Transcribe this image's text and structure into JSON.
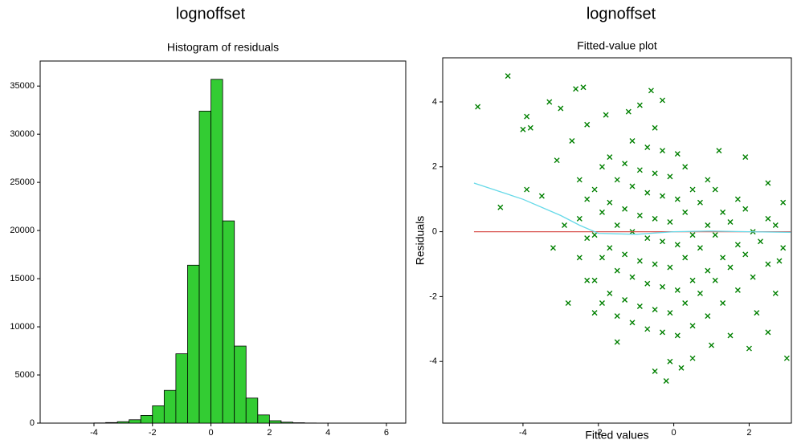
{
  "chart_data": [
    {
      "type": "histogram",
      "title": "lognoffset",
      "subtitle": "Histogram of residuals",
      "color": "#33cc33",
      "bins": [
        -4.0,
        -3.6,
        -3.2,
        -2.8,
        -2.4,
        -2.0,
        -1.6,
        -1.2,
        -0.8,
        -0.4,
        0,
        0.4,
        0.8,
        1.2,
        1.6,
        2.0,
        2.4,
        2.8,
        3.2,
        3.6,
        4.0
      ],
      "values": [
        20,
        60,
        150,
        350,
        800,
        1800,
        3400,
        7200,
        16400,
        32400,
        35700,
        21000,
        8000,
        2600,
        850,
        250,
        100,
        40,
        15,
        5
      ],
      "xlim": [
        -5.84,
        6.66
      ],
      "ylim": [
        0,
        37600
      ],
      "xticks": [
        -4,
        -2,
        0,
        2,
        4,
        6
      ],
      "yticks": [
        0,
        5000,
        10000,
        15000,
        20000,
        25000,
        30000,
        35000
      ]
    },
    {
      "type": "scatter",
      "title": "lognoffset",
      "subtitle": "Fitted-value plot",
      "x_label": "Fitted values",
      "y_label": "Residuals",
      "xlim": [
        -6.13,
        3.12
      ],
      "ylim": [
        -5.9,
        5.36
      ],
      "xticks": [
        -4,
        -2,
        0,
        2
      ],
      "yticks": [
        -4,
        -2,
        0,
        2,
        4
      ],
      "series": [
        {
          "mode": "markers",
          "color": "#008000",
          "x": [
            -5.2,
            -4.4,
            -4.6,
            -3.8,
            -4.0,
            -3.9,
            -3.3,
            -3.0,
            -2.6,
            -2.4,
            -0.6,
            -0.3,
            1.2,
            1.9,
            2.5,
            2.9,
            2.8,
            3.0,
            2.5,
            2.0,
            -0.2,
            -0.1,
            0.2,
            -0.5,
            -1.5,
            -2.1,
            -2.8,
            -3.2,
            -2.9,
            -3.5,
            -3.9,
            -3.1,
            -2.7,
            -2.3,
            -1.8,
            -1.2,
            -0.9,
            1.5,
            2.2,
            2.7,
            1.0,
            0.5,
            -2.3,
            -2.5,
            -2.3,
            -2.5,
            -2.3,
            -2.5,
            -1.9,
            -2.1,
            -1.9,
            -2.1,
            -1.9,
            -2.1,
            -1.9,
            -1.5,
            -1.7,
            -1.5,
            -1.7,
            -1.5,
            -1.7,
            -1.5,
            -1.7,
            -1.1,
            -1.3,
            -1.1,
            -1.3,
            -1.1,
            -1.3,
            -1.1,
            -1.3,
            -1.1,
            -0.7,
            -0.9,
            -0.7,
            -0.9,
            -0.7,
            -0.9,
            -0.7,
            -0.9,
            -0.7,
            -0.3,
            -0.5,
            -0.3,
            -0.5,
            -0.3,
            -0.5,
            -0.3,
            -0.5,
            -0.3,
            -0.5,
            0.1,
            -0.1,
            0.1,
            -0.1,
            0.1,
            -0.1,
            0.1,
            -0.1,
            0.1,
            0.5,
            0.3,
            0.5,
            0.3,
            0.5,
            0.3,
            0.5,
            0.3,
            0.9,
            0.7,
            0.9,
            0.7,
            0.9,
            0.7,
            0.9,
            1.3,
            1.1,
            1.3,
            1.1,
            1.3,
            1.1,
            1.7,
            1.5,
            1.7,
            1.5,
            1.7,
            2.1,
            1.9,
            2.1,
            1.9,
            2.5,
            2.3,
            2.5,
            2.9,
            2.7
          ],
          "values": [
            3.85,
            4.8,
            0.75,
            3.2,
            3.15,
            3.55,
            4.0,
            3.8,
            4.4,
            4.45,
            4.35,
            4.05,
            2.5,
            2.3,
            1.5,
            0.9,
            -0.9,
            -3.9,
            -3.1,
            -3.6,
            -4.6,
            -4.0,
            -4.2,
            -4.3,
            -3.4,
            -2.5,
            -2.2,
            -0.5,
            0.2,
            1.1,
            1.3,
            2.2,
            2.8,
            3.3,
            3.6,
            3.7,
            3.9,
            -3.2,
            -2.5,
            -1.9,
            -3.5,
            -3.9,
            -1.5,
            -0.8,
            -0.2,
            0.4,
            1.0,
            1.6,
            -2.2,
            -1.5,
            -0.8,
            -0.1,
            0.6,
            1.3,
            2.0,
            -2.6,
            -1.9,
            -1.2,
            -0.5,
            0.2,
            0.9,
            1.6,
            2.3,
            -2.8,
            -2.1,
            -1.4,
            -0.7,
            0,
            0.7,
            1.4,
            2.1,
            2.8,
            -3.0,
            -2.3,
            -1.6,
            -0.9,
            -0.2,
            0.5,
            1.2,
            1.9,
            2.6,
            -3.1,
            -2.4,
            -1.7,
            -1.0,
            -0.3,
            0.4,
            1.1,
            1.8,
            2.5,
            3.2,
            -3.2,
            -2.5,
            -1.8,
            -1.1,
            -0.4,
            0.3,
            1.0,
            1.7,
            2.4,
            -2.9,
            -2.2,
            -1.5,
            -0.8,
            -0.1,
            0.6,
            1.3,
            2.0,
            -2.6,
            -1.9,
            -1.2,
            -0.5,
            0.2,
            0.9,
            1.6,
            -2.2,
            -1.5,
            -0.8,
            -0.1,
            0.6,
            1.3,
            -1.8,
            -1.1,
            -0.4,
            0.3,
            1.0,
            -1.4,
            -0.7,
            0,
            0.7,
            -1.0,
            -0.3,
            0.4,
            -0.5,
            0.2
          ]
        },
        {
          "mode": "line",
          "color": "#d9534f",
          "x": [
            -5.3,
            3.1
          ],
          "values": [
            0,
            0
          ]
        },
        {
          "mode": "line",
          "color": "#66d9e8",
          "x": [
            -5.3,
            -4,
            -3,
            -2.5,
            -2,
            -1,
            0,
            1,
            2,
            3.1
          ],
          "values": [
            1.5,
            1.0,
            0.5,
            0.2,
            -0.05,
            -0.08,
            0.0,
            0.02,
            0.0,
            -0.02
          ]
        }
      ]
    }
  ]
}
